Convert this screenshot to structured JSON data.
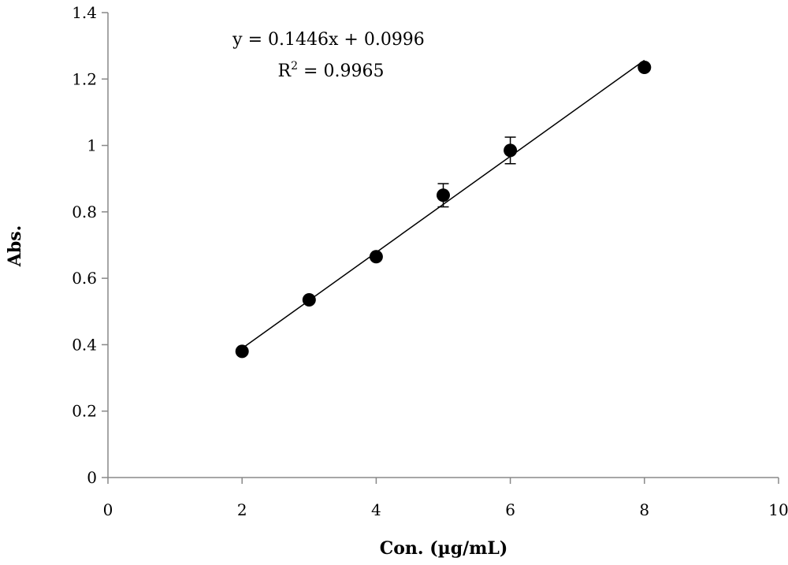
{
  "chart_data": {
    "type": "scatter",
    "title": "",
    "xlabel": "Con. (µg/mL)",
    "ylabel": "Abs.",
    "xlim": [
      0,
      10
    ],
    "ylim": [
      0,
      1.4
    ],
    "xticks": [
      0,
      2,
      4,
      6,
      8,
      10
    ],
    "yticks": [
      0,
      0.2,
      0.4,
      0.6,
      0.8,
      1,
      1.2,
      1.4
    ],
    "xtick_labels": [
      "0",
      "2",
      "4",
      "6",
      "8",
      "10"
    ],
    "ytick_labels": [
      "0",
      "0.2",
      "0.4",
      "0.6",
      "0.8",
      "1",
      "1.2",
      "1.4"
    ],
    "grid": false,
    "legend": "none",
    "series": [
      {
        "x": [
          2,
          3,
          4,
          5,
          6,
          8
        ],
        "y": [
          0.38,
          0.535,
          0.665,
          0.85,
          0.985,
          1.235
        ],
        "error": [
          0,
          0,
          0,
          0.035,
          0.04,
          0
        ],
        "marker": "filled-circle",
        "color": "#000000"
      }
    ],
    "trendline": {
      "type": "linear",
      "slope": 0.1446,
      "intercept": 0.0996,
      "x_range": [
        2,
        8
      ],
      "color": "#000000"
    },
    "annotations": {
      "equation": "y = 0.1446x + 0.0996",
      "r_squared_prefix": "R",
      "r_squared_superscript": "2",
      "r_squared_value": " = 0.9965"
    }
  }
}
